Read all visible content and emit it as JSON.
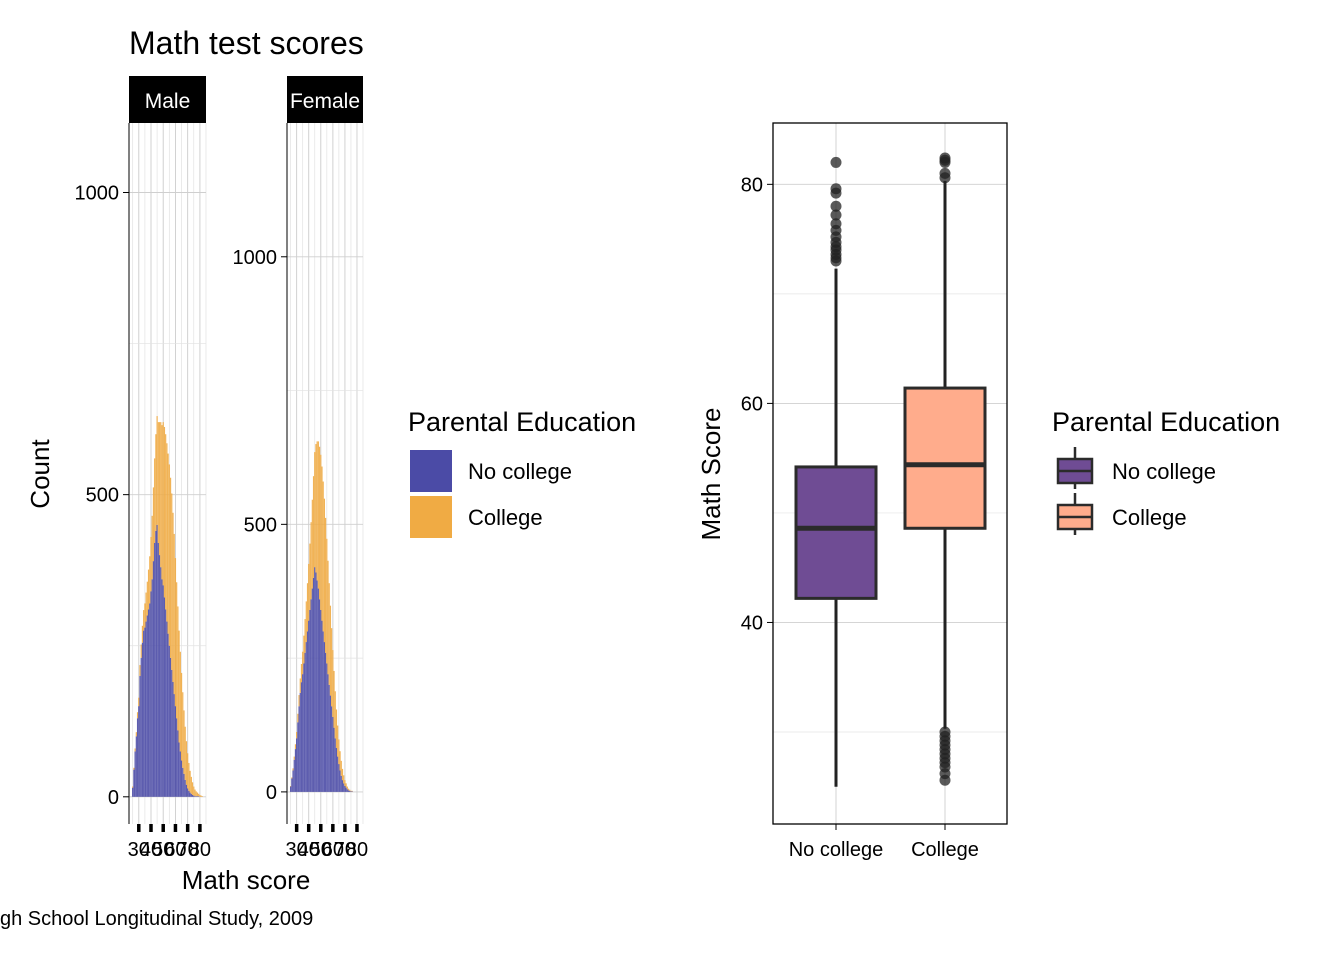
{
  "title": "Math test scores",
  "caption": "gh School Longitudinal Study, 2009",
  "colors": {
    "hist_no_college": "#4b4ba6",
    "hist_college": "#f0ab44",
    "box_no_college": "#6f4c94",
    "box_college": "#ffac8c",
    "strip_bg": "#000000",
    "strip_text": "#ffffff"
  },
  "histogram": {
    "xlabel": "Math score",
    "ylabel": "Count",
    "x_tick_labels": [
      "30",
      "40",
      "50",
      "60",
      "70",
      "80"
    ],
    "legend": {
      "title": "Parental Education",
      "items": [
        "No college",
        "College"
      ]
    },
    "panels": [
      {
        "strip": "Male",
        "y_tick_labels": [
          "0",
          "500",
          "1000"
        ]
      },
      {
        "strip": "Female",
        "y_tick_labels": [
          "0",
          "500",
          "1000"
        ]
      }
    ]
  },
  "boxplot": {
    "ylabel": "Math Score",
    "y_tick_labels": [
      "40",
      "60",
      "80"
    ],
    "x_tick_labels": [
      "No college",
      "College"
    ],
    "legend": {
      "title": "Parental Education",
      "items": [
        "No college",
        "College"
      ]
    }
  },
  "chart_data": [
    {
      "type": "bar",
      "title": "Math test scores",
      "facet": "Male",
      "xlabel": "Math score",
      "ylabel": "Count",
      "xlim": [
        22,
        85
      ],
      "ylim": [
        -45,
        1115
      ],
      "y_ticks": [
        0,
        500,
        1000
      ],
      "x_ticks": [
        30,
        40,
        50,
        60,
        70,
        80
      ],
      "stacked": true,
      "bin_width": 1,
      "x": [
        25,
        26,
        27,
        28,
        29,
        30,
        31,
        32,
        33,
        34,
        35,
        36,
        37,
        38,
        39,
        40,
        41,
        42,
        43,
        44,
        45,
        46,
        47,
        48,
        49,
        50,
        51,
        52,
        53,
        54,
        55,
        56,
        57,
        58,
        59,
        60,
        61,
        62,
        63,
        64,
        65,
        66,
        67,
        68,
        69,
        70,
        71,
        72,
        73,
        74,
        75,
        76,
        77,
        78,
        79,
        80,
        81,
        82
      ],
      "series": [
        {
          "name": "No college",
          "values": [
            15,
            45,
            75,
            100,
            130,
            150,
            200,
            230,
            255,
            275,
            280,
            290,
            300,
            310,
            320,
            340,
            360,
            390,
            420,
            440,
            450,
            420,
            400,
            380,
            360,
            350,
            330,
            310,
            290,
            270,
            250,
            230,
            210,
            190,
            170,
            150,
            130,
            110,
            90,
            75,
            60,
            48,
            38,
            28,
            20,
            14,
            10,
            7,
            5,
            3,
            2,
            1,
            1,
            1,
            1,
            0,
            0,
            0
          ]
        },
        {
          "name": "College",
          "values": [
            2,
            3,
            5,
            7,
            10,
            14,
            18,
            22,
            28,
            34,
            40,
            48,
            56,
            66,
            78,
            90,
            105,
            122,
            140,
            160,
            180,
            200,
            220,
            240,
            255,
            270,
            282,
            290,
            295,
            298,
            300,
            298,
            292,
            280,
            265,
            245,
            225,
            205,
            185,
            165,
            145,
            125,
            105,
            88,
            72,
            58,
            46,
            36,
            28,
            21,
            15,
            11,
            8,
            6,
            4,
            3,
            2,
            1
          ]
        }
      ]
    },
    {
      "type": "bar",
      "title": "Math test scores",
      "facet": "Female",
      "xlabel": "Math score",
      "ylabel": "Count",
      "xlim": [
        22,
        85
      ],
      "ylim": [
        -60,
        1250
      ],
      "y_ticks": [
        0,
        500,
        1000
      ],
      "x_ticks": [
        30,
        40,
        50,
        60,
        70,
        80
      ],
      "stacked": true,
      "bin_width": 1,
      "x": [
        25,
        26,
        27,
        28,
        29,
        30,
        31,
        32,
        33,
        34,
        35,
        36,
        37,
        38,
        39,
        40,
        41,
        42,
        43,
        44,
        45,
        46,
        47,
        48,
        49,
        50,
        51,
        52,
        53,
        54,
        55,
        56,
        57,
        58,
        59,
        60,
        61,
        62,
        63,
        64,
        65,
        66,
        67,
        68,
        69,
        70,
        71,
        72,
        73,
        74,
        75,
        76,
        77,
        78,
        79,
        80,
        81,
        82
      ],
      "series": [
        {
          "name": "No college",
          "values": [
            10,
            25,
            40,
            60,
            80,
            100,
            130,
            160,
            185,
            205,
            220,
            240,
            260,
            280,
            300,
            320,
            340,
            360,
            380,
            400,
            420,
            410,
            395,
            380,
            360,
            340,
            320,
            300,
            280,
            260,
            240,
            220,
            200,
            180,
            160,
            140,
            120,
            100,
            82,
            66,
            52,
            40,
            30,
            22,
            16,
            11,
            8,
            5,
            3,
            2,
            1,
            1,
            0,
            0,
            0,
            0,
            0,
            0
          ]
        },
        {
          "name": "College",
          "values": [
            1,
            2,
            4,
            6,
            9,
            12,
            16,
            21,
            27,
            34,
            42,
            52,
            63,
            76,
            90,
            106,
            124,
            144,
            166,
            190,
            215,
            240,
            260,
            275,
            285,
            290,
            288,
            280,
            268,
            252,
            233,
            212,
            190,
            168,
            146,
            125,
            106,
            88,
            72,
            58,
            46,
            36,
            28,
            21,
            15,
            11,
            8,
            5,
            3,
            2,
            1,
            1,
            0,
            0,
            0,
            0,
            0,
            0
          ]
        }
      ]
    },
    {
      "type": "box",
      "title": "",
      "xlabel": "",
      "ylabel": "Math Score",
      "ylim": [
        21.6,
        85.6
      ],
      "y_ticks": [
        40,
        60,
        80
      ],
      "categories": [
        "No college",
        "College"
      ],
      "series": [
        {
          "name": "No college",
          "min": 25,
          "q1": 42.2,
          "median": 48.6,
          "q3": 54.2,
          "max": 72.3,
          "outliers": [
            73,
            73.3,
            73.6,
            74,
            74.3,
            74.7,
            75.2,
            75.8,
            76.4,
            77.2,
            78,
            79.2,
            79.6,
            82
          ]
        },
        {
          "name": "College",
          "min": 30.3,
          "q1": 48.6,
          "median": 54.4,
          "q3": 61.4,
          "max": 80.3,
          "outliers": [
            25.6,
            26.2,
            26.8,
            27.2,
            27.6,
            28,
            28.4,
            28.8,
            29.2,
            29.6,
            30,
            80.6,
            81,
            82,
            82.2,
            82.4
          ]
        }
      ]
    }
  ]
}
